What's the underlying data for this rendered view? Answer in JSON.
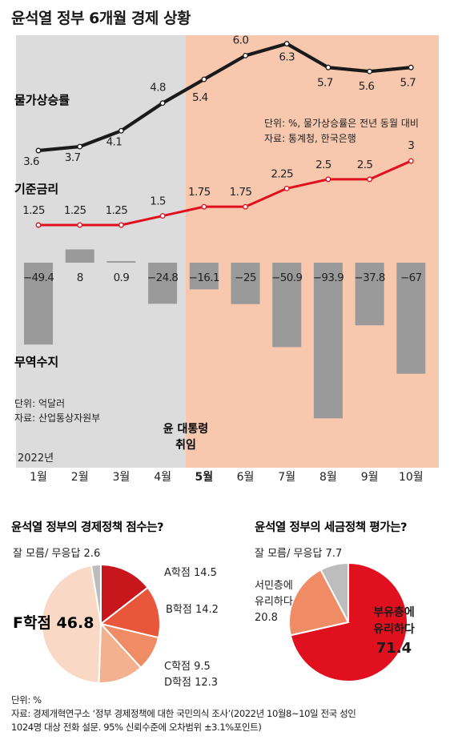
{
  "title": "윤석열 정부 6개월 경제 상황",
  "chart_data": [
    {
      "type": "line",
      "categories": [
        "1월",
        "2월",
        "3월",
        "4월",
        "5월",
        "6월",
        "7월",
        "8월",
        "9월",
        "10월"
      ],
      "highlight_category": "5월",
      "series": [
        {
          "name": "물가상승률",
          "values": [
            3.6,
            3.7,
            4.1,
            4.8,
            5.4,
            6.0,
            6.3,
            5.7,
            5.6,
            5.7
          ],
          "labels": [
            "3.6",
            "3.7",
            "4.1",
            "4.8",
            "5.4",
            "6.0",
            "6.3",
            "5.7",
            "5.6",
            "5.7"
          ],
          "color": "#1a1a1a"
        },
        {
          "name": "기준금리",
          "values": [
            1.25,
            1.25,
            1.25,
            1.5,
            1.75,
            1.75,
            2.25,
            2.5,
            2.5,
            3
          ],
          "labels": [
            "1.25",
            "1.25",
            "1.25",
            "1.5",
            "1.75",
            "1.75",
            "2.25",
            "2.5",
            "2.5",
            "3"
          ],
          "color": "#e0101e"
        }
      ],
      "notes": [
        "단위: %, 물가상승률은 전년 동월 대비",
        "자료: 통계청, 한국은행"
      ]
    },
    {
      "type": "bar",
      "categories": [
        "1월",
        "2월",
        "3월",
        "4월",
        "5월",
        "6월",
        "7월",
        "8월",
        "9월",
        "10월"
      ],
      "series": [
        {
          "name": "무역수지",
          "values": [
            -49.4,
            8,
            0.9,
            -24.8,
            -16.1,
            -25,
            -50.9,
            -93.9,
            -37.8,
            -67
          ],
          "labels": [
            "−49.4",
            "8",
            "0.9",
            "−24.8",
            "−16.1",
            "−25",
            "−50.9",
            "−93.9",
            "−37.8",
            "−67"
          ],
          "color": "#9a9a9a"
        }
      ],
      "notes": [
        "단위: 억달러",
        "자료: 산업통상자원부"
      ],
      "year_label": "2022년",
      "event_label": [
        "윤 대통령",
        "취임"
      ],
      "colors": {
        "before": "#dcdcdc",
        "after": "#f7c7ae"
      }
    },
    {
      "type": "pie",
      "title": "윤석열 정부의 경제정책 점수는?",
      "slices": [
        {
          "label": "A학점",
          "value": 14.5,
          "color": "#c8161d"
        },
        {
          "label": "B학점",
          "value": 14.2,
          "color": "#e9573a"
        },
        {
          "label": "C학점",
          "value": 9.5,
          "color": "#f08c65"
        },
        {
          "label": "D학점",
          "value": 12.3,
          "color": "#f4b190"
        },
        {
          "label": "F학점",
          "value": 46.8,
          "color": "#f9d9c6"
        },
        {
          "label": "잘 모름/ 무응답",
          "value": 2.6,
          "color": "#bdbdbd"
        }
      ],
      "text": {
        "dk": "잘 모름/ 무응답 2.6",
        "a": "A학점 14.5",
        "b": "B학점 14.2",
        "c": "C학점 9.5",
        "d": "D학점 12.3",
        "f": "F학점 46.8"
      }
    },
    {
      "type": "pie",
      "title": "윤석열 정부의 세금정책 평가는?",
      "slices": [
        {
          "label": "부유층에 유리하다",
          "value": 71.4,
          "color": "#e0101e"
        },
        {
          "label": "서민층에 유리하다",
          "value": 20.8,
          "color": "#f08c65"
        },
        {
          "label": "잘 모름/ 무응답",
          "value": 7.7,
          "color": "#bdbdbd"
        }
      ],
      "text": {
        "dk": "잘 모름/ 무응답 7.7",
        "poor": [
          "서민층에",
          "유리하다",
          "20.8"
        ],
        "rich": [
          "부유층에",
          "유리하다",
          "71.4"
        ]
      }
    }
  ],
  "footer": {
    "unit": "단위: %",
    "source1": "자료: 경제개혁연구소 ‘정부 경제정책에 대한 국민의식 조사’(2022년 10월8~10일 전국 성인",
    "source2": "1024명 대상 전화 설문. 95% 신뢰수준에 오차범위 ±3.1%포인트)"
  }
}
